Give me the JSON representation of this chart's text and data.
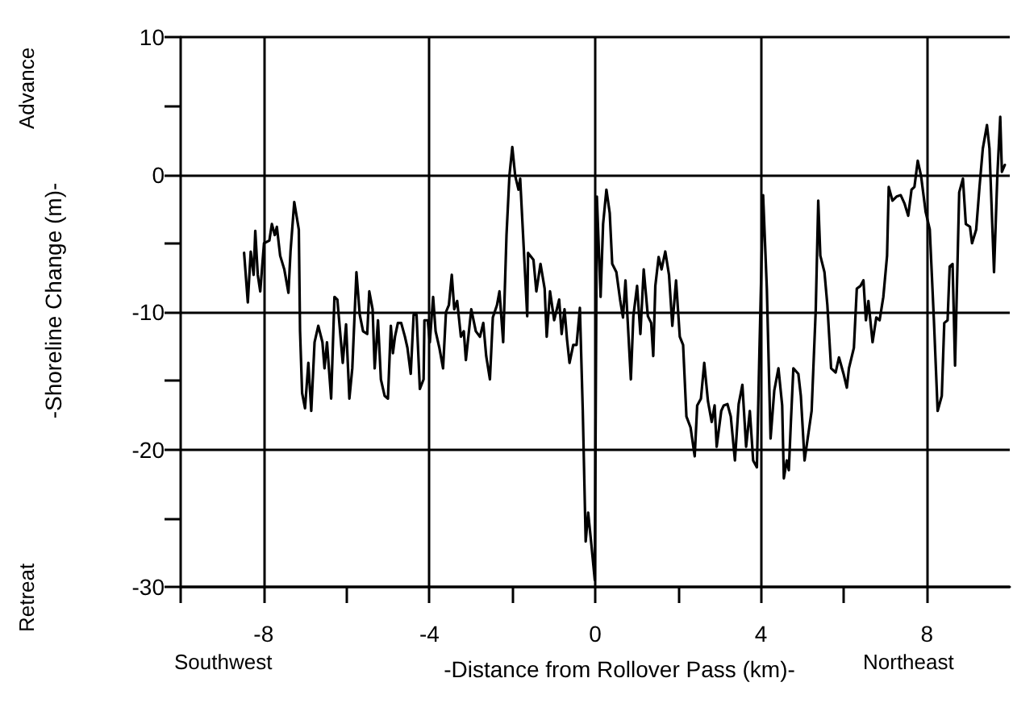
{
  "chart_data": {
    "type": "line",
    "xlabel": "-Distance from Rollover Pass (km)-",
    "ylabel": "-Shoreline Change (m)-",
    "annotations": [
      "Southwest",
      "Northeast",
      "Retreat",
      "Advance"
    ],
    "xlim": [
      -10,
      10
    ],
    "xticks": [
      {
        "value": -10,
        "label": null
      },
      -8,
      {
        "value": -6,
        "label": null
      },
      -4,
      {
        "value": -2,
        "label": null
      },
      0,
      {
        "value": 2,
        "label": null
      },
      4,
      {
        "value": 6,
        "label": null
      },
      8
    ],
    "ylim": [
      -30,
      10
    ],
    "yticks": [
      -30,
      {
        "value": -25,
        "label": null
      },
      -20,
      {
        "value": -15,
        "label": null
      },
      -10,
      {
        "value": -5,
        "label": null
      },
      0,
      {
        "value": 5,
        "label": null
      },
      10
    ],
    "grid": true,
    "marker": "none",
    "line_style": "solid",
    "series": [
      {
        "color": "#000000",
        "x": [
          -8.47,
          -8.38,
          -8.31,
          -8.24,
          -8.2,
          -8.14,
          -8.08,
          -7.99,
          -7.86,
          -7.8,
          -7.73,
          -7.68,
          -7.6,
          -7.5,
          -7.4,
          -7.35,
          -7.26,
          -7.15,
          -7.12,
          -7.07,
          -7.0,
          -6.92,
          -6.85,
          -6.77,
          -6.68,
          -6.58,
          -6.53,
          -6.47,
          -6.37,
          -6.29,
          -6.22,
          -6.09,
          -6.01,
          -5.93,
          -5.86,
          -5.76,
          -5.68,
          -5.6,
          -5.5,
          -5.45,
          -5.37,
          -5.32,
          -5.24,
          -5.17,
          -5.08,
          -5.0,
          -4.93,
          -4.88,
          -4.83,
          -4.76,
          -4.68,
          -4.59,
          -4.53,
          -4.45,
          -4.38,
          -4.31,
          -4.23,
          -4.14,
          -4.12,
          -4.04,
          -3.99,
          -3.91,
          -3.85,
          -3.76,
          -3.67,
          -3.6,
          -3.53,
          -3.46,
          -3.4,
          -3.33,
          -3.24,
          -3.17,
          -3.12,
          -2.99,
          -2.88,
          -2.78,
          -2.7,
          -2.63,
          -2.54,
          -2.47,
          -2.37,
          -2.31,
          -2.22,
          -2.14,
          -2.07,
          -2.0,
          -1.93,
          -1.85,
          -1.81,
          -1.64,
          -1.62,
          -1.49,
          -1.42,
          -1.32,
          -1.22,
          -1.17,
          -1.09,
          -0.99,
          -0.87,
          -0.81,
          -0.74,
          -0.68,
          -0.62,
          -0.53,
          -0.45,
          -0.37,
          -0.3,
          -0.23,
          -0.17,
          -0.09,
          -0.01,
          0.04,
          0.13,
          0.19,
          0.27,
          0.35,
          0.41,
          0.51,
          0.6,
          0.67,
          0.73,
          0.86,
          0.92,
          1.01,
          1.09,
          1.17,
          1.27,
          1.35,
          1.4,
          1.45,
          1.53,
          1.6,
          1.69,
          1.78,
          1.86,
          1.95,
          2.04,
          2.12,
          2.2,
          2.3,
          2.4,
          2.46,
          2.55,
          2.63,
          2.72,
          2.81,
          2.88,
          2.93,
          3.04,
          3.1,
          3.19,
          3.27,
          3.37,
          3.46,
          3.55,
          3.64,
          3.73,
          3.81,
          3.9,
          3.96,
          4.05,
          4.14,
          4.23,
          4.32,
          4.42,
          4.51,
          4.55,
          4.62,
          4.67,
          4.72,
          4.78,
          4.9,
          4.96,
          5.05,
          5.22,
          5.32,
          5.38,
          5.43,
          5.53,
          5.6,
          5.69,
          5.8,
          5.88,
          5.99,
          6.07,
          6.12,
          6.24,
          6.31,
          6.4,
          6.47,
          6.53,
          6.59,
          6.69,
          6.78,
          6.86,
          6.95,
          7.04,
          7.08,
          7.17,
          7.27,
          7.37,
          7.46,
          7.55,
          7.63,
          7.7,
          7.78,
          7.86,
          7.97,
          8.07,
          8.17,
          8.26,
          8.36,
          8.42,
          8.5,
          8.55,
          8.62,
          8.68,
          8.78,
          8.87,
          8.94,
          9.04,
          9.09,
          9.19,
          9.27,
          9.35,
          9.45,
          9.51,
          9.62,
          9.7,
          9.77,
          9.81,
          9.88
        ],
        "values": [
          -5.7,
          -9.3,
          -5.6,
          -7.3,
          -4.1,
          -7.3,
          -8.5,
          -5.0,
          -4.8,
          -3.6,
          -4.4,
          -3.8,
          -5.9,
          -6.9,
          -8.6,
          -5.6,
          -2.0,
          -4.0,
          -11.4,
          -15.9,
          -17.0,
          -13.7,
          -17.2,
          -12.2,
          -11.0,
          -12.2,
          -14.1,
          -12.2,
          -16.3,
          -8.9,
          -9.1,
          -13.7,
          -10.9,
          -16.3,
          -14.1,
          -7.1,
          -10.2,
          -11.4,
          -11.6,
          -8.5,
          -9.8,
          -14.1,
          -10.6,
          -14.9,
          -16.1,
          -16.3,
          -11.0,
          -13.0,
          -11.8,
          -10.8,
          -10.8,
          -11.8,
          -12.6,
          -14.5,
          -10.2,
          -10.2,
          -15.6,
          -14.9,
          -10.6,
          -10.6,
          -12.2,
          -8.9,
          -11.4,
          -12.6,
          -14.1,
          -10.0,
          -9.5,
          -7.3,
          -9.8,
          -9.2,
          -11.8,
          -11.4,
          -13.5,
          -9.8,
          -11.4,
          -11.8,
          -10.8,
          -13.2,
          -14.9,
          -10.4,
          -9.5,
          -8.5,
          -12.2,
          -4.4,
          -0.1,
          2.0,
          -0.1,
          -1.1,
          -0.3,
          -10.3,
          -5.7,
          -6.2,
          -8.5,
          -6.5,
          -8.3,
          -11.8,
          -8.5,
          -10.6,
          -9.1,
          -11.6,
          -9.8,
          -12.0,
          -13.7,
          -12.4,
          -12.4,
          -9.7,
          -17.2,
          -26.7,
          -24.6,
          -27.0,
          -29.5,
          -1.6,
          -8.9,
          -3.6,
          -1.1,
          -2.8,
          -6.5,
          -7.1,
          -9.1,
          -10.4,
          -7.7,
          -14.9,
          -10.3,
          -8.1,
          -11.6,
          -6.9,
          -10.3,
          -10.8,
          -13.2,
          -8.1,
          -6.0,
          -6.9,
          -5.6,
          -7.3,
          -11.0,
          -7.7,
          -11.8,
          -12.4,
          -17.6,
          -18.4,
          -20.5,
          -16.8,
          -16.3,
          -13.7,
          -16.5,
          -18.0,
          -16.8,
          -19.8,
          -17.2,
          -16.8,
          -16.7,
          -17.6,
          -20.8,
          -16.7,
          -15.3,
          -19.8,
          -17.2,
          -20.8,
          -21.3,
          -13.0,
          -1.5,
          -8.3,
          -19.2,
          -15.7,
          -14.1,
          -16.8,
          -22.1,
          -20.8,
          -21.5,
          -18.0,
          -14.1,
          -14.5,
          -16.1,
          -20.8,
          -17.2,
          -9.8,
          -1.9,
          -5.9,
          -7.1,
          -9.5,
          -14.1,
          -14.4,
          -13.3,
          -14.5,
          -15.5,
          -14.1,
          -12.6,
          -8.3,
          -8.1,
          -7.7,
          -10.6,
          -9.2,
          -12.2,
          -10.4,
          -10.6,
          -8.9,
          -5.9,
          -0.9,
          -1.9,
          -1.6,
          -1.5,
          -2.1,
          -3.0,
          -1.1,
          -0.9,
          1.0,
          -0.1,
          -2.7,
          -4.0,
          -10.6,
          -17.2,
          -16.1,
          -10.8,
          -10.6,
          -6.7,
          -6.5,
          -13.9,
          -1.3,
          -0.3,
          -3.6,
          -3.8,
          -5.0,
          -4.0,
          -0.9,
          1.9,
          3.6,
          1.9,
          -7.1,
          -0.1,
          4.2,
          0.2,
          0.7
        ]
      }
    ]
  }
}
